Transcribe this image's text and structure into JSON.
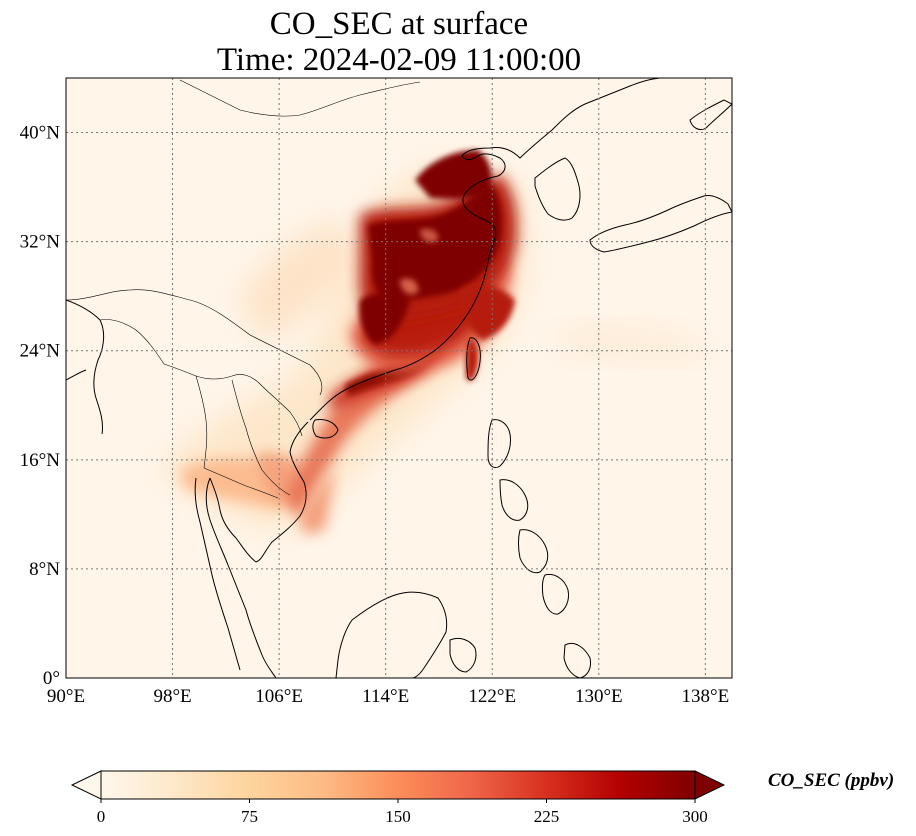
{
  "title": "CO_SEC at surface",
  "subtitle": "Time: 2024-02-09 11:00:00",
  "map": {
    "lon_range": [
      90,
      140
    ],
    "lat_range": [
      0,
      44
    ],
    "lon_ticks": [
      "90°E",
      "98°E",
      "106°E",
      "114°E",
      "122°E",
      "130°E",
      "138°E"
    ],
    "lon_tick_values": [
      90,
      98,
      106,
      114,
      122,
      130,
      138
    ],
    "lat_ticks": [
      "0°",
      "8°N",
      "16°N",
      "24°N",
      "32°N",
      "40°N"
    ],
    "lat_tick_values": [
      0,
      8,
      16,
      24,
      32,
      40
    ],
    "gridlines": true,
    "coastlines": true,
    "borders": true
  },
  "colorbar": {
    "label": "CO_SEC (ppbv)",
    "ticks": [
      "0",
      "75",
      "150",
      "225",
      "300"
    ],
    "tick_values": [
      0,
      75,
      150,
      225,
      300
    ],
    "range": [
      0,
      300
    ],
    "extend": "both",
    "colormap": "OrRd",
    "colors": [
      "#fff7ec",
      "#fee8c8",
      "#fdd49e",
      "#fdbb84",
      "#fc8d59",
      "#ef6548",
      "#d7301f",
      "#b30000",
      "#7f0000"
    ]
  },
  "chart_data": {
    "type": "heatmap",
    "variable": "CO_SEC",
    "units": "ppbv",
    "max_plume_region": "Eastern China (approx. 114°E–124°E, 24°N–39°N)",
    "secondary_plume": "Indochina / Gulf of Tonkin (approx. 103°E–112°E, 13°N–22°N)"
  }
}
